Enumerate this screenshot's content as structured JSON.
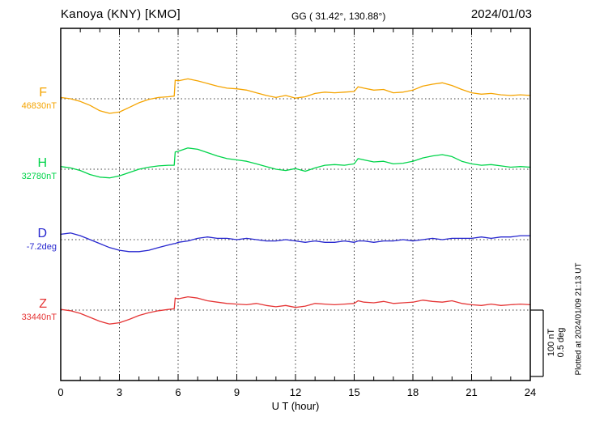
{
  "header": {
    "station_title": "Kanoya (KNY)  [KMO]",
    "coords": "GG ( 31.42°, 130.88°)",
    "date": "2024/01/03"
  },
  "x_axis": {
    "label": "U T (hour)",
    "ticks": [
      "0",
      "3",
      "6",
      "9",
      "12",
      "15",
      "18",
      "21",
      "24"
    ]
  },
  "right_annotations": {
    "scale_nT": "100 nT",
    "scale_deg": "0.5 deg",
    "plotted_at": "Plotted at 2024/01/09 21:13 UT"
  },
  "chart_data": {
    "type": "line",
    "title": "Kanoya (KNY) [KMO] magnetogram, 2024/01/03",
    "xlabel": "U T (hour)",
    "x_range": [
      0,
      24
    ],
    "x_gridlines_hours": [
      3,
      6,
      9,
      12,
      15,
      18,
      21
    ],
    "scale_bar": {
      "nT": 100,
      "deg": 0.5
    },
    "x": [
      0,
      0.5,
      1,
      1.5,
      2,
      2.5,
      3,
      3.5,
      4,
      4.5,
      5,
      5.5,
      5.8,
      5.85,
      6,
      6.5,
      7,
      7.5,
      8,
      8.5,
      9,
      9.5,
      10,
      10.5,
      11,
      11.5,
      12,
      12.5,
      13,
      13.5,
      14,
      14.5,
      15,
      15.2,
      15.5,
      16,
      16.5,
      17,
      17.5,
      18,
      18.5,
      19,
      19.5,
      20,
      20.5,
      21,
      21.5,
      22,
      22.5,
      23,
      23.5,
      24
    ],
    "series": [
      {
        "name": "F",
        "baseline_label": "46830nT",
        "unit": "nT",
        "color": "#f5a400",
        "offsets": [
          2,
          0,
          -4,
          -10,
          -18,
          -22,
          -20,
          -13,
          -6,
          -1,
          2,
          3,
          4,
          28,
          27,
          30,
          27,
          23,
          19,
          16,
          15,
          13,
          9,
          5,
          2,
          5,
          1,
          3,
          8,
          10,
          9,
          10,
          11,
          18,
          16,
          13,
          14,
          9,
          10,
          13,
          19,
          22,
          24,
          20,
          14,
          9,
          7,
          8,
          6,
          5,
          6,
          5
        ]
      },
      {
        "name": "H",
        "baseline_label": "32780nT",
        "unit": "nT",
        "color": "#00d44a",
        "offsets": [
          4,
          2,
          -2,
          -8,
          -12,
          -13,
          -10,
          -5,
          0,
          3,
          5,
          6,
          6,
          26,
          27,
          32,
          30,
          25,
          20,
          16,
          14,
          12,
          8,
          4,
          0,
          -2,
          1,
          -3,
          2,
          6,
          7,
          6,
          8,
          16,
          14,
          11,
          12,
          8,
          9,
          12,
          17,
          20,
          22,
          19,
          12,
          8,
          6,
          7,
          5,
          3,
          4,
          3
        ]
      },
      {
        "name": "D",
        "baseline_label": "-7.2deg",
        "unit": "deg",
        "color": "#2626cf",
        "offsets": [
          0.04,
          0.05,
          0.03,
          0,
          -0.03,
          -0.06,
          -0.08,
          -0.09,
          -0.09,
          -0.08,
          -0.06,
          -0.04,
          -0.03,
          -0.03,
          -0.02,
          -0.01,
          0.01,
          0.02,
          0.01,
          0.01,
          0,
          0.01,
          0,
          -0.01,
          -0.01,
          0,
          -0.01,
          -0.02,
          -0.01,
          -0.02,
          -0.02,
          -0.01,
          -0.02,
          -0.01,
          -0.01,
          -0.02,
          -0.01,
          -0.01,
          0,
          -0.01,
          0,
          0.01,
          0,
          0.01,
          0.01,
          0.01,
          0.02,
          0.01,
          0.02,
          0.02,
          0.03,
          0.03
        ]
      },
      {
        "name": "Z",
        "baseline_label": "33440nT",
        "unit": "nT",
        "color": "#e53535",
        "offsets": [
          1,
          -1,
          -5,
          -11,
          -17,
          -21,
          -19,
          -14,
          -8,
          -4,
          -1,
          1,
          2,
          18,
          17,
          20,
          18,
          14,
          12,
          10,
          9,
          8,
          10,
          7,
          5,
          7,
          4,
          6,
          10,
          9,
          8,
          9,
          10,
          14,
          12,
          11,
          13,
          10,
          11,
          12,
          15,
          13,
          12,
          14,
          10,
          8,
          7,
          9,
          7,
          8,
          9,
          8
        ]
      }
    ]
  }
}
